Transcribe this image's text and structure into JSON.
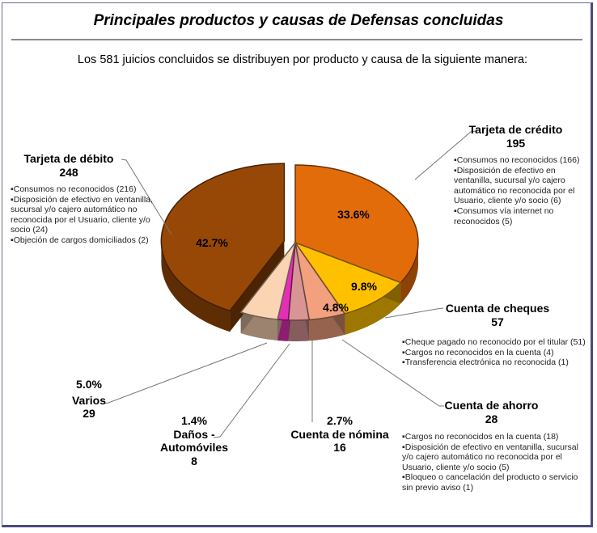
{
  "title": "Principales productos y causas de Defensas concluidas",
  "subtitle": "Los 581 juicios concluidos se distribuyen por producto y causa de la siguiente manera:",
  "chart_data": {
    "type": "pie",
    "style": "3d-exploded",
    "total": 581,
    "slices": [
      {
        "name": "Tarjeta de crédito",
        "count": 195,
        "percent": "33.6%",
        "value": 33.6,
        "color": "#E36C0A",
        "causes": [
          "Consumos no reconocidos (166)",
          "Disposición de efectivo en ventanilla,  sucursal  y/o cajero automático no reconocida por el Usuario, cliente y/o socio (6)",
          "Consumos vía internet no reconocidos (5)"
        ]
      },
      {
        "name": "Cuenta de cheques",
        "count": 57,
        "percent": "9.8%",
        "value": 9.8,
        "color": "#FFC000",
        "causes": [
          "Cheque pagado no reconocido por el titular (51)",
          "Cargos no reconocidos en la cuenta  (4)",
          "Transferencia  electrónica  no reconocida (1)"
        ]
      },
      {
        "name": "Cuenta de ahorro",
        "count": 28,
        "percent": "4.8%",
        "value": 4.8,
        "color": "#F2A07D",
        "causes": [
          "Cargos no reconocidos en la cuenta  (18)",
          "Disposición de efectivo en ventanilla,  sucursal y/o cajero automático no reconocida por el Usuario, cliente y/o socio (5)",
          "Bloqueo o cancelación del producto o servicio sin previo aviso (1)"
        ]
      },
      {
        "name": "Cuenta de nómina",
        "count": 16,
        "percent": "2.7%",
        "value": 2.7,
        "color": "#D99594",
        "causes": []
      },
      {
        "name_line1": "Daños -",
        "name_line2": "Automóviles",
        "count": 8,
        "percent": "1.4%",
        "value": 1.4,
        "color": "#E32FB5",
        "causes": []
      },
      {
        "name": "Varios",
        "count": 29,
        "percent": "5.0%",
        "value": 5.0,
        "color": "#FBD4B4",
        "causes": []
      },
      {
        "name": "Tarjeta de débito",
        "count": 248,
        "percent": "42.7%",
        "value": 42.7,
        "color": "#984806",
        "exploded": true,
        "causes": [
          "Consumos no reconocidos (216)",
          "Disposición de efectivo en ventanilla,  sucursal  y/o cajero automático no reconocida por el Usuario, cliente y/o socio (24)",
          "Objeción de cargos domiciliados (2)"
        ]
      }
    ]
  }
}
